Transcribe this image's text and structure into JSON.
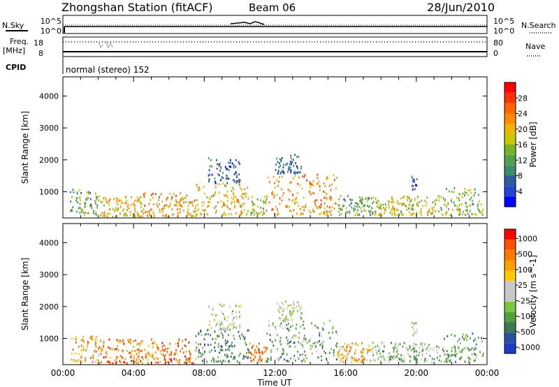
{
  "header": {
    "title": "Zhongshan Station (fitACF)",
    "beam": "Beam 06",
    "date": "28/Jun/2010"
  },
  "status_panels": {
    "nsky_label": "N.Sky",
    "nsky_ticks": [
      "10^5",
      "10^0"
    ],
    "nsearch_label": "N.Search",
    "nsearch_ticks": [
      "10^5",
      "10^0"
    ],
    "freq_label": "Freq.",
    "freq_unit": "[MHz]",
    "freq_ticks": [
      "18",
      "8"
    ],
    "nave_label": "Nave",
    "nave_ticks": [
      "80",
      "0"
    ],
    "cpid_label": "CPID",
    "cpid_text": "normal (stereo) 152"
  },
  "panels": {
    "power_ylabel": "Slant Range [km]",
    "velocity_ylabel": "Slant Range [km]",
    "xlabel": "Time UT"
  },
  "chart_data": [
    {
      "type": "heatmap",
      "quantity": "power",
      "x_range_hours": [
        0,
        24
      ],
      "x_ticks": [
        "00:00",
        "04:00",
        "08:00",
        "12:00",
        "16:00",
        "20:00",
        "00:00"
      ],
      "y_ticks": [
        "1000",
        "2000",
        "3000",
        "4000"
      ],
      "ylabel": "Slant Range [km]",
      "ylim": [
        180,
        4600
      ],
      "colorbar": {
        "label": "Power [dB]",
        "ticks": [
          "4",
          "8",
          "12",
          "16",
          "20",
          "24",
          "28"
        ],
        "colors": [
          "#0000ff",
          "#1e46d2",
          "#2d5aa0",
          "#3c8c6e",
          "#50a050",
          "#78b428",
          "#c8c800",
          "#f0b400",
          "#ff8c00",
          "#ff6400",
          "#ff3200",
          "#ff0000"
        ]
      },
      "regions": [
        {
          "t_start": 0.4,
          "t_end": 2.0,
          "r_min": 300,
          "r_max": 1100,
          "level": 4
        },
        {
          "t_start": 2.0,
          "t_end": 4.5,
          "r_min": 250,
          "r_max": 900,
          "level": 7
        },
        {
          "t_start": 4.5,
          "t_end": 7.5,
          "r_min": 250,
          "r_max": 1000,
          "level": 8
        },
        {
          "t_start": 7.5,
          "t_end": 10.5,
          "r_min": 300,
          "r_max": 1300,
          "level": 7
        },
        {
          "t_start": 8.2,
          "t_end": 10.0,
          "r_min": 1300,
          "r_max": 2100,
          "level": 2
        },
        {
          "t_start": 10.5,
          "t_end": 11.5,
          "r_min": 300,
          "r_max": 900,
          "level": 5
        },
        {
          "t_start": 11.5,
          "t_end": 15.5,
          "r_min": 300,
          "r_max": 1600,
          "level": 8
        },
        {
          "t_start": 12.0,
          "t_end": 13.5,
          "r_min": 1600,
          "r_max": 2200,
          "level": 2
        },
        {
          "t_start": 15.5,
          "t_end": 17.5,
          "r_min": 300,
          "r_max": 900,
          "level": 4
        },
        {
          "t_start": 17.5,
          "t_end": 21.5,
          "r_min": 300,
          "r_max": 900,
          "level": 6
        },
        {
          "t_start": 19.7,
          "t_end": 20.0,
          "r_min": 1100,
          "r_max": 1600,
          "level": 2
        },
        {
          "t_start": 21.5,
          "t_end": 23.8,
          "r_min": 300,
          "r_max": 1200,
          "level": 5
        }
      ]
    },
    {
      "type": "heatmap",
      "quantity": "velocity",
      "x_range_hours": [
        0,
        24
      ],
      "x_ticks": [
        "00:00",
        "04:00",
        "08:00",
        "12:00",
        "16:00",
        "20:00",
        "00:00"
      ],
      "y_ticks": [
        "1000",
        "2000",
        "3000",
        "4000"
      ],
      "ylabel": "Slant Range [km]",
      "ylim": [
        180,
        4600
      ],
      "colorbar": {
        "label": "Velocity [m s^-1]",
        "ticks": [
          "1000",
          "500",
          "100",
          "25",
          "-25",
          "-100",
          "-500",
          "-1000"
        ],
        "colors": [
          "#1e3cc8",
          "#2850a0",
          "#3c7850",
          "#50a03c",
          "#78c83c",
          "#c8c8c8",
          "#c8c8c8",
          "#ffc800",
          "#ffa000",
          "#ff7800",
          "#ff5000",
          "#ff0000"
        ]
      },
      "regions": [
        {
          "t_start": 0.4,
          "t_end": 2.0,
          "r_min": 300,
          "r_max": 1100,
          "level": 8
        },
        {
          "t_start": 2.0,
          "t_end": 7.5,
          "r_min": 250,
          "r_max": 1000,
          "level": 9
        },
        {
          "t_start": 7.5,
          "t_end": 10.5,
          "r_min": 300,
          "r_max": 1300,
          "level": 2
        },
        {
          "t_start": 8.2,
          "t_end": 10.0,
          "r_min": 1300,
          "r_max": 2100,
          "level": 5
        },
        {
          "t_start": 10.5,
          "t_end": 11.5,
          "r_min": 300,
          "r_max": 900,
          "level": 9
        },
        {
          "t_start": 11.5,
          "t_end": 15.5,
          "r_min": 300,
          "r_max": 1600,
          "level": 3
        },
        {
          "t_start": 12.0,
          "t_end": 13.5,
          "r_min": 1600,
          "r_max": 2200,
          "level": 5
        },
        {
          "t_start": 15.5,
          "t_end": 17.5,
          "r_min": 300,
          "r_max": 900,
          "level": 8
        },
        {
          "t_start": 17.5,
          "t_end": 21.5,
          "r_min": 300,
          "r_max": 900,
          "level": 4
        },
        {
          "t_start": 19.7,
          "t_end": 20.0,
          "r_min": 1100,
          "r_max": 1600,
          "level": 5
        },
        {
          "t_start": 21.5,
          "t_end": 23.8,
          "r_min": 300,
          "r_max": 1200,
          "level": 3
        }
      ]
    }
  ]
}
